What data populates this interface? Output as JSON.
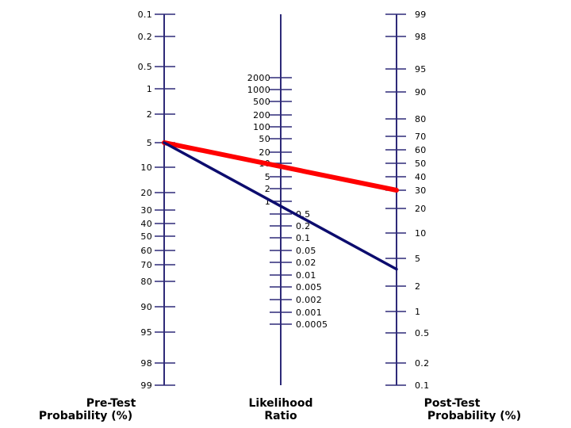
{
  "colors": {
    "axis": "#2e2a78",
    "line_positive": "#ff0000",
    "line_negative": "#0c0c6e",
    "text": "#000000"
  },
  "pretest": {
    "title_line1": "Pre-Test",
    "title_line2": "Probability (%)",
    "ticks": [
      "0.1",
      "0.2",
      "0.5",
      "1",
      "2",
      "5",
      "10",
      "20",
      "30",
      "40",
      "50",
      "60",
      "70",
      "80",
      "90",
      "95",
      "98",
      "99"
    ]
  },
  "likelihood_ratio": {
    "title_line1": "Likelihood",
    "title_line2": "Ratio",
    "ticks_high": [
      "2000",
      "1000",
      "500",
      "200",
      "100",
      "50",
      "20",
      "10",
      "5",
      "2",
      "1"
    ],
    "ticks_low": [
      "0.5",
      "0.2",
      "0.1",
      "0.05",
      "0.02",
      "0.01",
      "0.005",
      "0.002",
      "0.001",
      "0.0005"
    ]
  },
  "posttest": {
    "title_line1": "Post-Test",
    "title_line2": "Probability (%)",
    "ticks": [
      "99",
      "98",
      "95",
      "90",
      "80",
      "70",
      "60",
      "50",
      "40",
      "30",
      "20",
      "10",
      "5",
      "2",
      "1",
      "0.5",
      "0.2",
      "0.1"
    ]
  },
  "lines": [
    {
      "name": "positive",
      "pretest": 5,
      "posttest": 30
    },
    {
      "name": "negative",
      "pretest": 5,
      "posttest": 3.5
    }
  ]
}
